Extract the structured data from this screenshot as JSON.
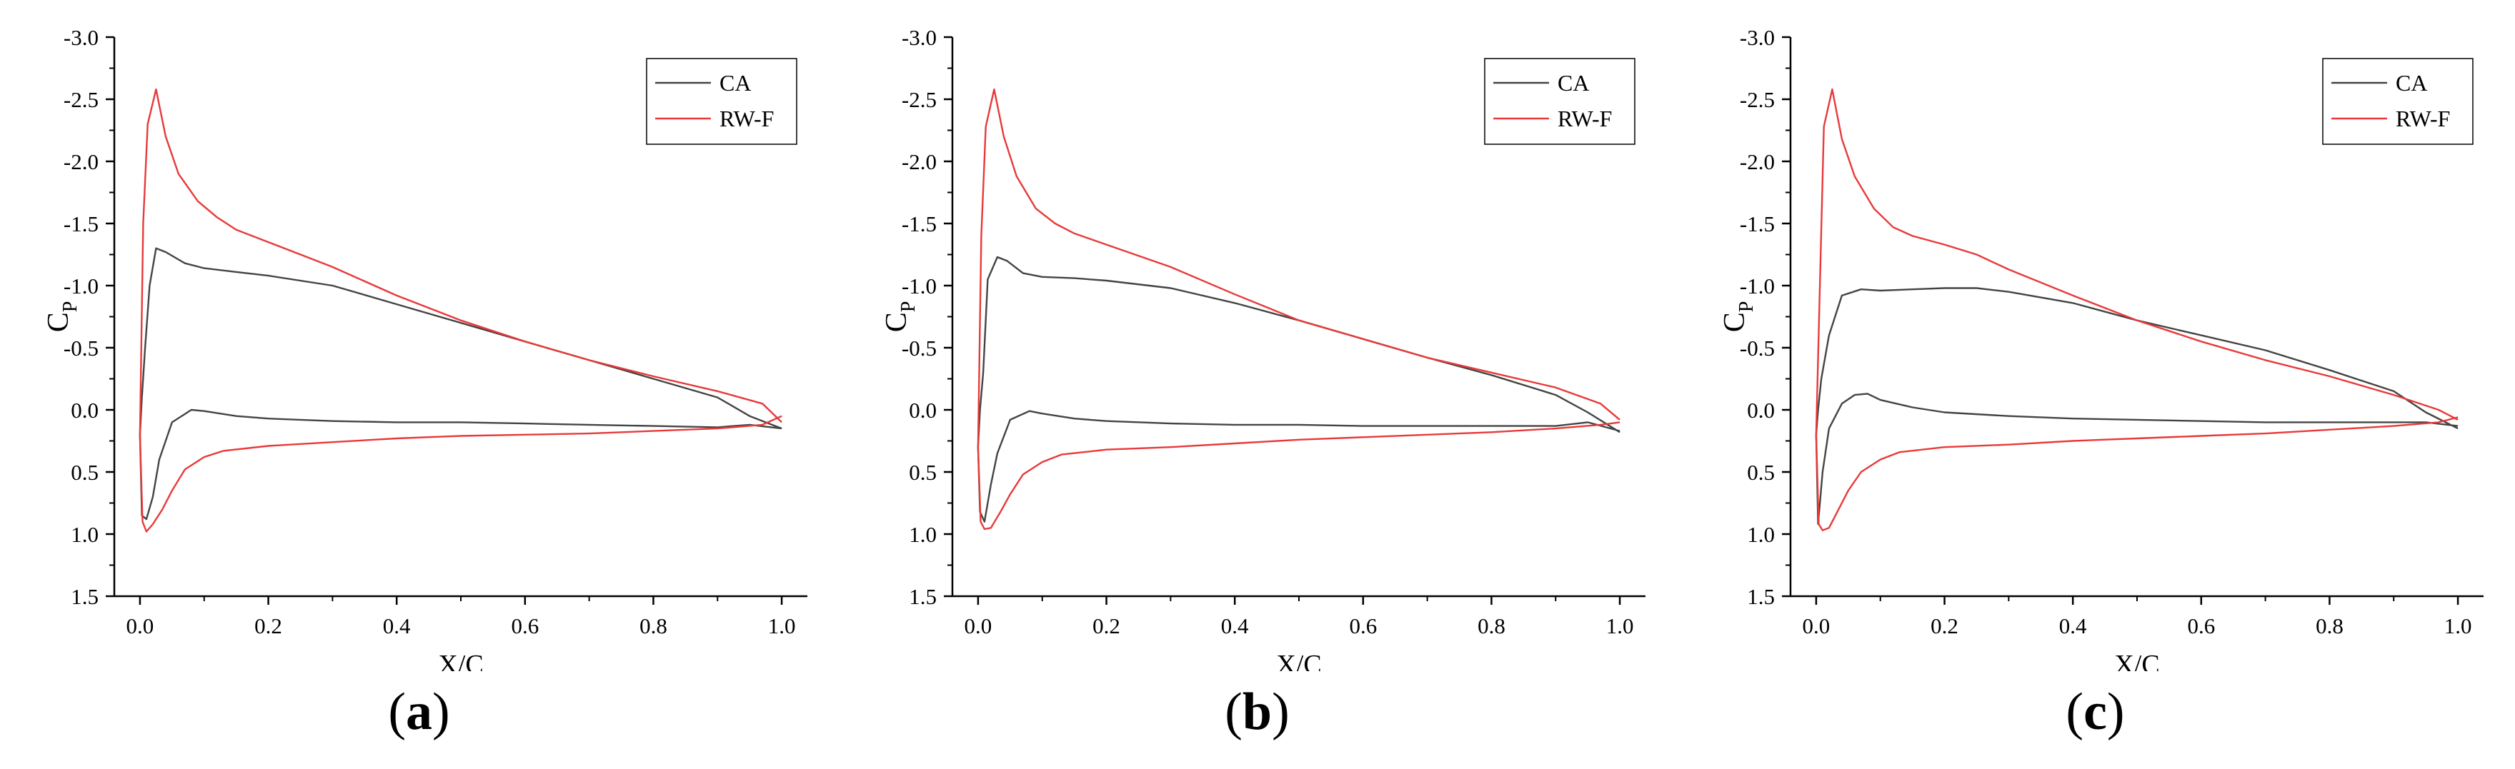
{
  "colors": {
    "ca": "#444444",
    "rwf": "#e8393a",
    "axis": "#000000"
  },
  "chart_data": [
    {
      "type": "line",
      "panel_label": "a",
      "xlabel": "X/C",
      "ylabel": "C",
      "ylabel_sub": "P",
      "xlim": [
        -0.04,
        1.04
      ],
      "ylim": [
        1.5,
        -3.0
      ],
      "y_inverted": true,
      "xticks": [
        "0.0",
        "0.2",
        "0.4",
        "0.6",
        "0.8",
        "1.0"
      ],
      "xtick_values": [
        0,
        0.2,
        0.4,
        0.6,
        0.8,
        1.0
      ],
      "yticks": [
        "-3.0",
        "-2.5",
        "-2.0",
        "-1.5",
        "-1.0",
        "-0.5",
        "0.0",
        "0.5",
        "1.0",
        "1.5"
      ],
      "ytick_values": [
        -3.0,
        -2.5,
        -2.0,
        -1.5,
        -1.0,
        -0.5,
        0.0,
        0.5,
        1.0,
        1.5
      ],
      "legend_position": "top-right",
      "series": [
        {
          "name": "CA",
          "color_key": "ca",
          "x": [
            1.0,
            0.95,
            0.9,
            0.8,
            0.7,
            0.6,
            0.5,
            0.4,
            0.3,
            0.2,
            0.15,
            0.1,
            0.07,
            0.04,
            0.025,
            0.015,
            0.008,
            0.003,
            0.0,
            0.003,
            0.01,
            0.02,
            0.03,
            0.05,
            0.08,
            0.1,
            0.15,
            0.2,
            0.3,
            0.4,
            0.5,
            0.6,
            0.7,
            0.8,
            0.9,
            0.95,
            1.0
          ],
          "y": [
            0.15,
            0.05,
            -0.1,
            -0.25,
            -0.4,
            -0.55,
            -0.7,
            -0.85,
            -1.0,
            -1.08,
            -1.11,
            -1.14,
            -1.18,
            -1.27,
            -1.3,
            -1.0,
            -0.5,
            -0.1,
            0.2,
            0.85,
            0.88,
            0.7,
            0.4,
            0.1,
            0.0,
            0.01,
            0.05,
            0.07,
            0.09,
            0.1,
            0.1,
            0.11,
            0.12,
            0.13,
            0.14,
            0.12,
            0.15
          ]
        },
        {
          "name": "RW-F",
          "color_key": "rwf",
          "x": [
            1.0,
            0.97,
            0.9,
            0.8,
            0.7,
            0.6,
            0.5,
            0.4,
            0.3,
            0.2,
            0.15,
            0.12,
            0.09,
            0.06,
            0.04,
            0.025,
            0.012,
            0.005,
            0.0,
            0.004,
            0.01,
            0.02,
            0.035,
            0.05,
            0.07,
            0.1,
            0.13,
            0.2,
            0.3,
            0.4,
            0.5,
            0.6,
            0.7,
            0.8,
            0.9,
            0.97,
            1.0
          ],
          "y": [
            0.1,
            -0.05,
            -0.15,
            -0.27,
            -0.4,
            -0.55,
            -0.72,
            -0.92,
            -1.15,
            -1.35,
            -1.45,
            -1.55,
            -1.68,
            -1.9,
            -2.2,
            -2.58,
            -2.3,
            -1.5,
            0.2,
            0.9,
            0.98,
            0.92,
            0.8,
            0.65,
            0.48,
            0.38,
            0.33,
            0.29,
            0.26,
            0.23,
            0.21,
            0.2,
            0.19,
            0.17,
            0.15,
            0.12,
            0.05
          ]
        }
      ]
    },
    {
      "type": "line",
      "panel_label": "b",
      "xlabel": "X/C",
      "ylabel": "C",
      "ylabel_sub": "P",
      "xlim": [
        -0.04,
        1.04
      ],
      "ylim": [
        1.5,
        -3.0
      ],
      "y_inverted": true,
      "xticks": [
        "0.0",
        "0.2",
        "0.4",
        "0.6",
        "0.8",
        "1.0"
      ],
      "xtick_values": [
        0,
        0.2,
        0.4,
        0.6,
        0.8,
        1.0
      ],
      "yticks": [
        "-3.0",
        "-2.5",
        "-2.0",
        "-1.5",
        "-1.0",
        "-0.5",
        "0.0",
        "0.5",
        "1.0",
        "1.5"
      ],
      "ytick_values": [
        -3.0,
        -2.5,
        -2.0,
        -1.5,
        -1.0,
        -0.5,
        0.0,
        0.5,
        1.0,
        1.5
      ],
      "legend_position": "top-right",
      "series": [
        {
          "name": "CA",
          "color_key": "ca",
          "x": [
            1.0,
            0.95,
            0.9,
            0.8,
            0.7,
            0.6,
            0.5,
            0.4,
            0.3,
            0.2,
            0.15,
            0.1,
            0.07,
            0.045,
            0.03,
            0.015,
            0.008,
            0.003,
            0.0,
            0.003,
            0.01,
            0.02,
            0.03,
            0.05,
            0.08,
            0.1,
            0.15,
            0.2,
            0.3,
            0.4,
            0.5,
            0.6,
            0.7,
            0.8,
            0.9,
            0.95,
            1.0
          ],
          "y": [
            0.18,
            0.02,
            -0.12,
            -0.28,
            -0.42,
            -0.57,
            -0.72,
            -0.86,
            -0.98,
            -1.04,
            -1.06,
            -1.07,
            -1.1,
            -1.2,
            -1.23,
            -1.05,
            -0.3,
            0.0,
            0.3,
            0.82,
            0.9,
            0.6,
            0.35,
            0.08,
            0.01,
            0.03,
            0.07,
            0.09,
            0.11,
            0.12,
            0.12,
            0.13,
            0.13,
            0.13,
            0.13,
            0.1,
            0.17
          ]
        },
        {
          "name": "RW-F",
          "color_key": "rwf",
          "x": [
            1.0,
            0.97,
            0.9,
            0.8,
            0.7,
            0.6,
            0.5,
            0.4,
            0.3,
            0.2,
            0.15,
            0.12,
            0.09,
            0.06,
            0.04,
            0.025,
            0.012,
            0.005,
            0.0,
            0.004,
            0.01,
            0.02,
            0.035,
            0.05,
            0.07,
            0.1,
            0.13,
            0.2,
            0.3,
            0.4,
            0.5,
            0.6,
            0.7,
            0.8,
            0.9,
            0.97,
            1.0
          ],
          "y": [
            0.08,
            -0.05,
            -0.18,
            -0.3,
            -0.42,
            -0.57,
            -0.72,
            -0.93,
            -1.15,
            -1.33,
            -1.42,
            -1.5,
            -1.62,
            -1.88,
            -2.2,
            -2.58,
            -2.28,
            -1.4,
            0.3,
            0.9,
            0.96,
            0.95,
            0.82,
            0.68,
            0.52,
            0.42,
            0.36,
            0.32,
            0.3,
            0.27,
            0.24,
            0.22,
            0.2,
            0.18,
            0.15,
            0.12,
            0.1
          ]
        }
      ]
    },
    {
      "type": "line",
      "panel_label": "c",
      "xlabel": "X/C",
      "ylabel": "C",
      "ylabel_sub": "P",
      "xlim": [
        -0.04,
        1.04
      ],
      "ylim": [
        1.5,
        -3.0
      ],
      "y_inverted": true,
      "xticks": [
        "0.0",
        "0.2",
        "0.4",
        "0.6",
        "0.8",
        "1.0"
      ],
      "xtick_values": [
        0,
        0.2,
        0.4,
        0.6,
        0.8,
        1.0
      ],
      "yticks": [
        "-3.0",
        "-2.5",
        "-2.0",
        "-1.5",
        "-1.0",
        "-0.5",
        "0.0",
        "0.5",
        "1.0",
        "1.5"
      ],
      "ytick_values": [
        -3.0,
        -2.5,
        -2.0,
        -1.5,
        -1.0,
        -0.5,
        0.0,
        0.5,
        1.0,
        1.5
      ],
      "legend_position": "top-right",
      "series": [
        {
          "name": "CA",
          "color_key": "ca",
          "x": [
            1.0,
            0.95,
            0.9,
            0.8,
            0.7,
            0.6,
            0.5,
            0.4,
            0.3,
            0.25,
            0.2,
            0.15,
            0.1,
            0.07,
            0.04,
            0.02,
            0.008,
            0.003,
            0.0,
            0.003,
            0.01,
            0.02,
            0.04,
            0.06,
            0.08,
            0.1,
            0.15,
            0.2,
            0.3,
            0.4,
            0.5,
            0.6,
            0.7,
            0.8,
            0.9,
            0.95,
            1.0
          ],
          "y": [
            0.15,
            0.02,
            -0.15,
            -0.32,
            -0.48,
            -0.6,
            -0.72,
            -0.86,
            -0.95,
            -0.98,
            -0.98,
            -0.97,
            -0.96,
            -0.97,
            -0.92,
            -0.6,
            -0.25,
            0.0,
            0.2,
            0.92,
            0.5,
            0.15,
            -0.05,
            -0.12,
            -0.13,
            -0.08,
            -0.02,
            0.02,
            0.05,
            0.07,
            0.08,
            0.09,
            0.1,
            0.1,
            0.1,
            0.1,
            0.13
          ]
        },
        {
          "name": "RW-F",
          "color_key": "rwf",
          "x": [
            1.0,
            0.97,
            0.9,
            0.8,
            0.7,
            0.6,
            0.5,
            0.4,
            0.3,
            0.25,
            0.2,
            0.15,
            0.12,
            0.09,
            0.06,
            0.04,
            0.025,
            0.012,
            0.0,
            0.004,
            0.01,
            0.02,
            0.035,
            0.05,
            0.07,
            0.1,
            0.13,
            0.2,
            0.3,
            0.4,
            0.5,
            0.6,
            0.7,
            0.8,
            0.9,
            0.97,
            1.0
          ],
          "y": [
            0.08,
            0.0,
            -0.12,
            -0.27,
            -0.4,
            -0.55,
            -0.72,
            -0.92,
            -1.13,
            -1.25,
            -1.33,
            -1.4,
            -1.47,
            -1.62,
            -1.88,
            -2.18,
            -2.58,
            -2.28,
            0.2,
            0.92,
            0.97,
            0.95,
            0.8,
            0.65,
            0.5,
            0.4,
            0.34,
            0.3,
            0.28,
            0.25,
            0.23,
            0.21,
            0.19,
            0.16,
            0.13,
            0.1,
            0.06
          ]
        }
      ]
    }
  ]
}
